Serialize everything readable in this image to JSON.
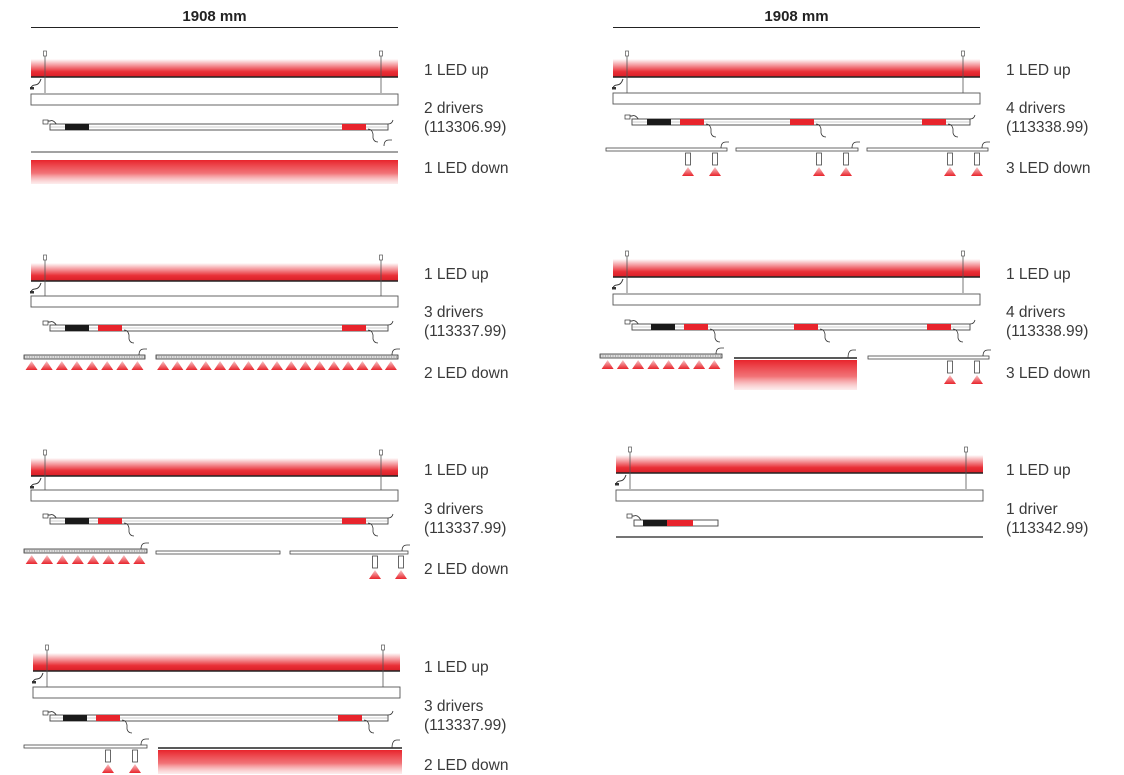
{
  "header": {
    "left_dimension": "1908 mm",
    "right_dimension": "1908 mm"
  },
  "colors": {
    "accent_red": "#e8242c",
    "glow_red": "#e8242c",
    "driver_black": "#1a1a1a",
    "line": "#333333"
  },
  "configs": [
    {
      "up_label": "1 LED up",
      "drivers_label": "2 drivers",
      "code_label": "(113306.99)",
      "down_label": "1 LED down"
    },
    {
      "up_label": "1 LED up",
      "drivers_label": "3 drivers",
      "code_label": "(113337.99)",
      "down_label": "2 LED down"
    },
    {
      "up_label": "1 LED up",
      "drivers_label": "3 drivers",
      "code_label": "(113337.99)",
      "down_label": "2 LED down"
    },
    {
      "up_label": "1 LED up",
      "drivers_label": "3 drivers",
      "code_label": "(113337.99)",
      "down_label": "2 LED down"
    },
    {
      "up_label": "1 LED up",
      "drivers_label": "4 drivers",
      "code_label": "(113338.99)",
      "down_label": "3 LED down"
    },
    {
      "up_label": "1 LED up",
      "drivers_label": "4 drivers",
      "code_label": "(113338.99)",
      "down_label": "3 LED down"
    },
    {
      "up_label": "1 LED up",
      "drivers_label": "1 driver",
      "code_label": "(113342.99)",
      "down_label": ""
    }
  ]
}
